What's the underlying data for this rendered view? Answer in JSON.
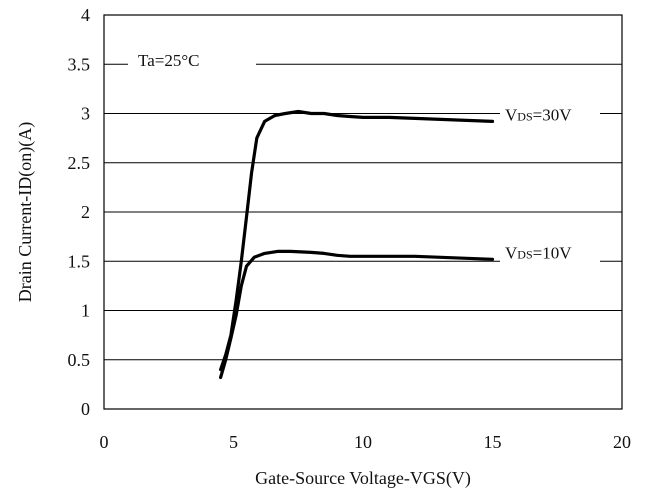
{
  "chart_data": {
    "type": "line",
    "title": "",
    "xlabel": "Gate-Source Voltage-VGS(V)",
    "ylabel": "Drain Current-ID(on)(A)",
    "xlim": [
      0,
      20
    ],
    "ylim": [
      0,
      4
    ],
    "x_ticks": [
      0,
      5,
      10,
      15,
      20
    ],
    "y_ticks": [
      0,
      0.5,
      1,
      1.5,
      2,
      2.5,
      3,
      3.5,
      4
    ],
    "x_tick_labels": [
      "0",
      "5",
      "10",
      "15",
      "20"
    ],
    "y_tick_labels": [
      "0",
      "0.5",
      "1",
      "1.5",
      "2",
      "2.5",
      "3",
      "3.5",
      "4"
    ],
    "grid": "horizontal",
    "annotations": {
      "temperature": "Ta=25°C"
    },
    "series": [
      {
        "label_main": "V",
        "label_sub": "DS",
        "label_rest": "=30V",
        "points": [
          [
            4.5,
            0.4
          ],
          [
            4.7,
            0.55
          ],
          [
            4.9,
            0.75
          ],
          [
            5.1,
            1.1
          ],
          [
            5.3,
            1.5
          ],
          [
            5.5,
            1.95
          ],
          [
            5.7,
            2.4
          ],
          [
            5.9,
            2.75
          ],
          [
            6.2,
            2.92
          ],
          [
            6.6,
            2.98
          ],
          [
            7.0,
            3.0
          ],
          [
            7.5,
            3.02
          ],
          [
            8.0,
            3.0
          ],
          [
            8.5,
            3.0
          ],
          [
            9.0,
            2.98
          ],
          [
            9.5,
            2.97
          ],
          [
            10.0,
            2.96
          ],
          [
            11.0,
            2.96
          ],
          [
            12.0,
            2.95
          ],
          [
            13.0,
            2.94
          ],
          [
            14.0,
            2.93
          ],
          [
            15.0,
            2.92
          ]
        ]
      },
      {
        "label_main": "V",
        "label_sub": "DS",
        "label_rest": "=10V",
        "points": [
          [
            4.5,
            0.32
          ],
          [
            4.7,
            0.5
          ],
          [
            4.9,
            0.72
          ],
          [
            5.1,
            0.95
          ],
          [
            5.3,
            1.25
          ],
          [
            5.5,
            1.45
          ],
          [
            5.8,
            1.54
          ],
          [
            6.2,
            1.58
          ],
          [
            6.7,
            1.6
          ],
          [
            7.2,
            1.6
          ],
          [
            8.0,
            1.59
          ],
          [
            8.5,
            1.58
          ],
          [
            9.0,
            1.56
          ],
          [
            9.5,
            1.55
          ],
          [
            10.0,
            1.55
          ],
          [
            11.0,
            1.55
          ],
          [
            12.0,
            1.55
          ],
          [
            13.0,
            1.54
          ],
          [
            14.0,
            1.53
          ],
          [
            15.0,
            1.52
          ]
        ]
      }
    ]
  }
}
